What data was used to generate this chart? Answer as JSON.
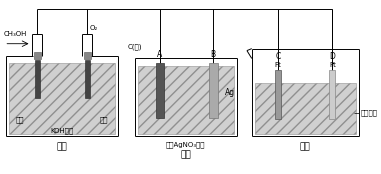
{
  "bg_color": "#ffffff",
  "lc": "#000000",
  "lw": 0.7,
  "fig_width": 3.81,
  "fig_height": 1.74,
  "dpi": 100,
  "labels": {
    "ch3oh": "CH₃OH",
    "o2": "O₂",
    "c_carbon": "C(砖)",
    "electrode_left": "电极",
    "electrode_right": "电极",
    "koh": "KOH溶液",
    "jia_chi": "甲池",
    "yi_chi": "乙池",
    "bing_chi": "丙池",
    "A": "A",
    "B": "B",
    "Ag": "Ag",
    "C": "C",
    "Pt_C": "Pt",
    "D": "D",
    "Pt_D": "Pt",
    "agnO3": "过量AgNO₃溶液",
    "jyan": "基盐溶液"
  }
}
